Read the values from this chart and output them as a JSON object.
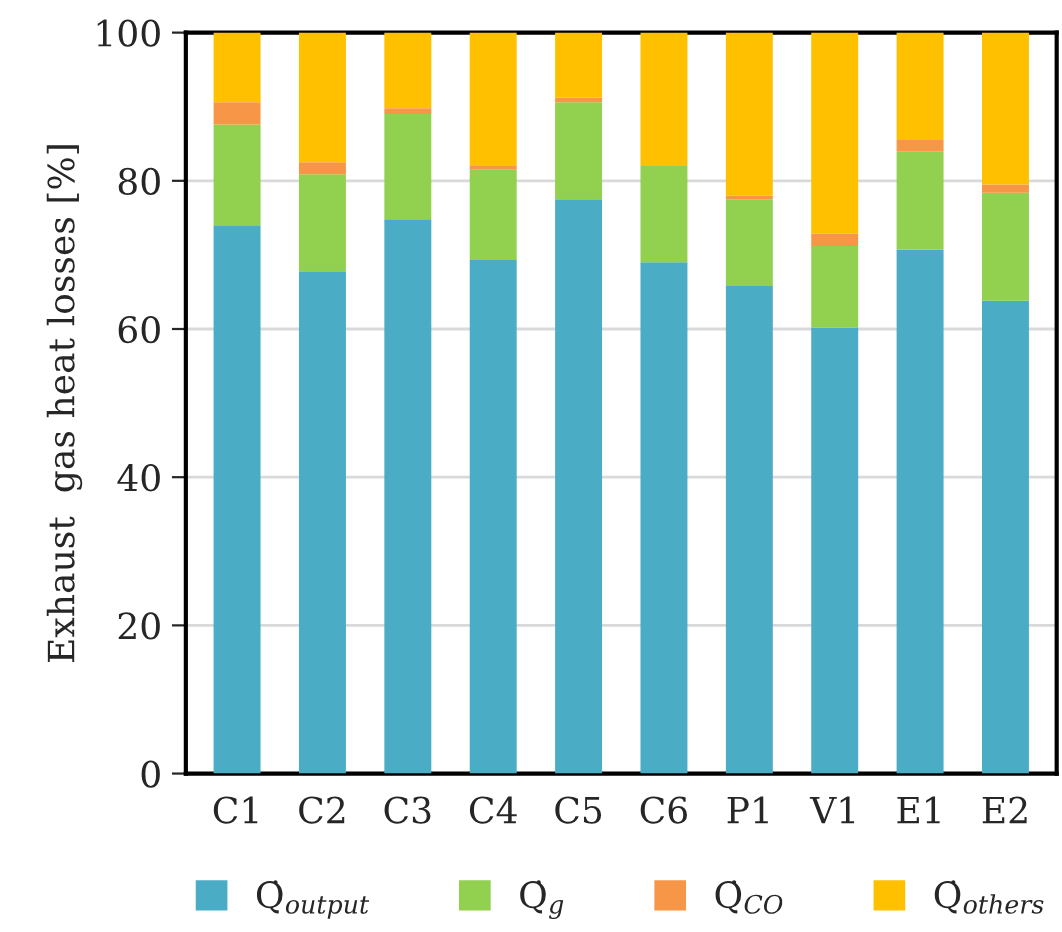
{
  "chart_data": {
    "type": "bar",
    "stacked": true,
    "ylabel": "Exhaust  gas heat losses [%]",
    "categories": [
      "C1",
      "C2",
      "C3",
      "C4",
      "C5",
      "C6",
      "P1",
      "V1",
      "E1",
      "E2"
    ],
    "series": [
      {
        "name": "Q̇$_{output}$",
        "color": "#4bacc6",
        "values": [
          74.0,
          67.8,
          74.8,
          69.3,
          77.5,
          69.0,
          65.8,
          60.2,
          70.7,
          63.8
        ]
      },
      {
        "name": "Q̇$_{g}$",
        "color": "#92d050",
        "values": [
          13.6,
          13.1,
          14.2,
          12.2,
          13.1,
          13.0,
          11.7,
          11.0,
          13.3,
          14.6
        ]
      },
      {
        "name": "Q̇$_{CO}$",
        "color": "#f79646",
        "values": [
          3.0,
          1.6,
          0.8,
          0.6,
          0.6,
          0.0,
          0.5,
          1.7,
          1.5,
          1.1
        ]
      },
      {
        "name": "Q̇$_{others}$",
        "color": "#ffc000",
        "values": [
          9.4,
          17.5,
          10.2,
          17.9,
          8.8,
          18.0,
          22.0,
          27.1,
          14.5,
          20.5
        ]
      }
    ],
    "ylim": [
      0,
      100
    ],
    "yticks": [
      0,
      20,
      40,
      60,
      80,
      100
    ],
    "grid": "y",
    "legend": "bottom"
  }
}
